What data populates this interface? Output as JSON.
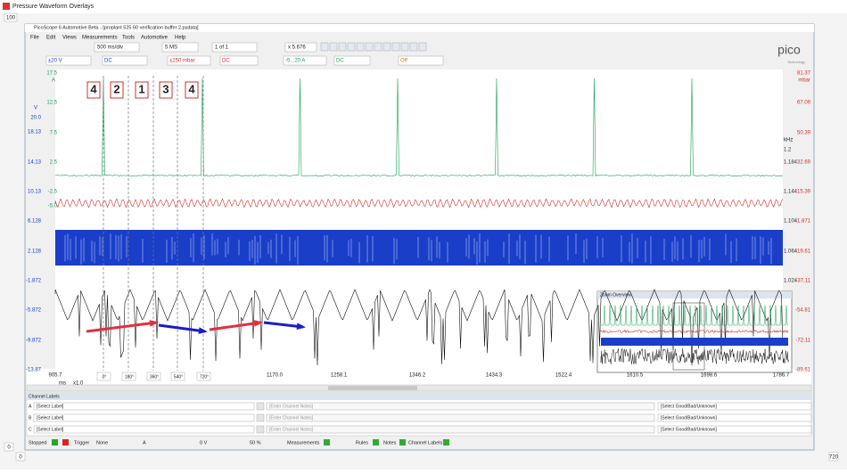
{
  "window": {
    "title": "Pressure Waveform Overlays",
    "markers": {
      "top_left": "100",
      "bottom_left_outer": "0",
      "bottom_left_inner": "0",
      "bottom_right": "720"
    }
  },
  "app": {
    "title": "PicoScope 6 Automotive Beta - [proplant 525 60 verification buffer 2.psdata]",
    "menu": [
      "File",
      "Edit",
      "Views",
      "Measurements",
      "Tools",
      "Automotive",
      "Help"
    ],
    "toolbar": {
      "timebase": "500 ms/div",
      "samples": "5 MS",
      "buffer": "1 of 1",
      "zoom": "x 5.676"
    },
    "channels": {
      "a_range": "±20 V",
      "a_coupling": "DC",
      "b_range": "±250 mbar",
      "b_coupling": "DC",
      "c_range": "-5...20 A",
      "c_coupling": "DC",
      "d_range": "Off"
    },
    "logo": {
      "name": "pico",
      "tagline": "Technology"
    }
  },
  "scope": {
    "green_axis": {
      "unit": "A",
      "ticks": [
        "17.5",
        "12.5",
        "7.5",
        "2.5",
        "-2.5",
        "-5.0"
      ]
    },
    "blue_axis": {
      "unit": "V",
      "ticks": [
        "20.0",
        "18.13",
        "14.13",
        "10.13",
        "6.128",
        "2.128",
        "-1.872",
        "-5.872",
        "-9.872",
        "-13.87"
      ]
    },
    "red_axis": {
      "unit": "mbar",
      "ticks": [
        "81.37",
        "67.09",
        "50.39",
        "32.69",
        "15.39",
        "-1.871",
        "-19.61",
        "-37.11",
        "-54.81",
        "-72.11",
        "-89.61"
      ]
    },
    "khz_axis": {
      "unit": "kHz",
      "ticks": [
        "1.2",
        "1.184",
        "1.144",
        "1.104",
        "1.064",
        "1.024"
      ]
    },
    "x_axis": {
      "unit": "ms",
      "zoom": "x1.0",
      "ticks": [
        "905.7",
        "1170.0",
        "1258.1",
        "1346.2",
        "1434.3",
        "1522.4",
        "1610.5",
        "1698.6",
        "1786.7"
      ]
    },
    "cylinders": [
      "4",
      "2",
      "1",
      "3",
      "4"
    ],
    "degrees": [
      "0°",
      "180°",
      "360°",
      "540°",
      "720°"
    ],
    "zoom_overview": "Zoom Overview"
  },
  "channel_labels": {
    "title": "Channel Labels",
    "rows": [
      {
        "channel": "A",
        "label": "[Select Label]",
        "notes": "[Enter Channel Notes]",
        "status": "[Select Good/Bad/Unknown]"
      },
      {
        "channel": "B",
        "label": "[Select Label]",
        "notes": "[Enter Channel Notes]",
        "status": "[Select Good/Bad/Unknown]"
      },
      {
        "channel": "C",
        "label": "[Select Label]",
        "notes": "[Enter Channel Notes]",
        "status": "[Select Good/Bad/Unknown]"
      }
    ]
  },
  "status_bar": {
    "state": "Stopped",
    "trigger": "Trigger",
    "trigger_mode": "None",
    "trigger_channel": "A",
    "threshold": "0 V",
    "pretrigger": "50 %",
    "measurements": "Measurements",
    "rules": "Rules",
    "notes": "Notes",
    "channel_labels": "Channel Labels"
  }
}
